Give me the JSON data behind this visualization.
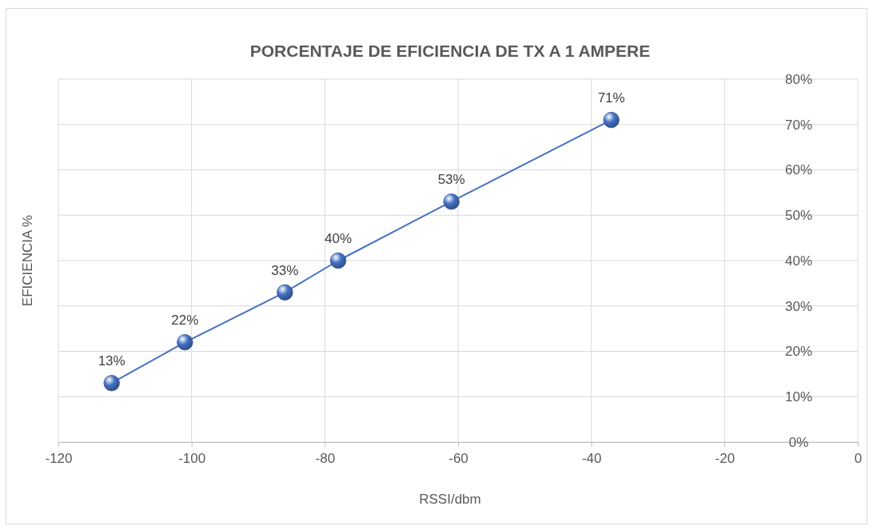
{
  "chart_data": {
    "type": "line",
    "title": "PORCENTAJE DE EFICIENCIA DE TX A 1 AMPERE",
    "xlabel": "RSSI/dbm",
    "ylabel": "EFICIENCIA %",
    "x": [
      -112,
      -101,
      -86,
      -78,
      -61,
      -37
    ],
    "series": [
      {
        "color": "#4472c4",
        "values": [
          13,
          22,
          33,
          40,
          53,
          71
        ],
        "value_labels": [
          "13%",
          "22%",
          "33%",
          "40%",
          "53%",
          "71%"
        ]
      }
    ],
    "xlim": [
      -120,
      0
    ],
    "xticks": [
      -120,
      -100,
      -80,
      -60,
      -40,
      -20,
      0
    ],
    "ylim": [
      0,
      80
    ],
    "yticks": [
      {
        "value": 0,
        "label": "0%"
      },
      {
        "value": 10,
        "label": "10%"
      },
      {
        "value": 20,
        "label": "20%"
      },
      {
        "value": 30,
        "label": "30%"
      },
      {
        "value": 40,
        "label": "40%"
      },
      {
        "value": 50,
        "label": "50%"
      },
      {
        "value": 60,
        "label": "60%"
      },
      {
        "value": 70,
        "label": "70%"
      },
      {
        "value": 80,
        "label": "80%"
      }
    ],
    "grid": true,
    "marker": "circle",
    "line_style": "solid"
  }
}
